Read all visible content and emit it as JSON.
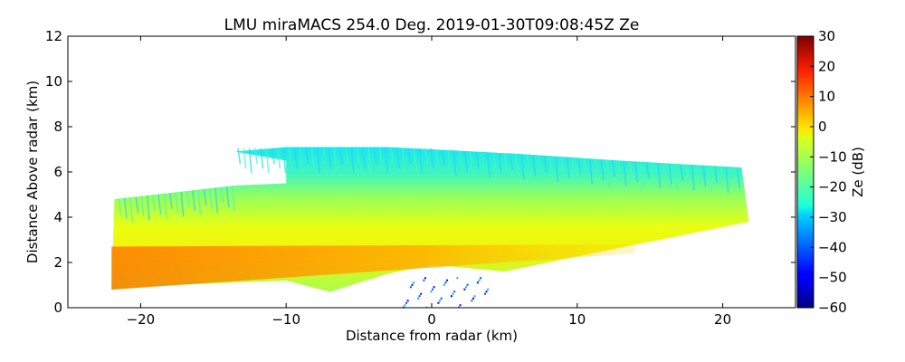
{
  "chart_data": {
    "type": "heatmap",
    "title": "LMU miraMACS 254.0 Deg. 2019-01-30T09:08:45Z  Ze",
    "xlabel": "Distance from radar (km)",
    "ylabel": "Distance Above radar  (km)",
    "xlim": [
      -25,
      25
    ],
    "ylim": [
      0,
      12
    ],
    "xticks": [
      -20,
      -10,
      0,
      10,
      20
    ],
    "xtick_labels": [
      "−20",
      "−10",
      "0",
      "10",
      "20"
    ],
    "yticks": [
      0,
      2,
      4,
      6,
      8,
      10,
      12
    ],
    "ytick_labels": [
      "0",
      "2",
      "4",
      "6",
      "8",
      "10",
      "12"
    ],
    "colorbar": {
      "label": "Ze (dB)",
      "range": [
        -60,
        30
      ],
      "ticks": [
        30,
        20,
        10,
        0,
        -10,
        -20,
        -30,
        -40,
        -50,
        -60
      ],
      "tick_labels": [
        "30",
        "20",
        "10",
        "0",
        "−10",
        "−20",
        "−30",
        "−40",
        "−50",
        "−60"
      ],
      "colormap": "jet"
    },
    "features": {
      "echo_region_outline_km": [
        [
          -22,
          0.8
        ],
        [
          -21.8,
          4.8
        ],
        [
          -13.5,
          5.4
        ],
        [
          -13.5,
          6.9
        ],
        [
          -10,
          7.1
        ],
        [
          -3,
          7.1
        ],
        [
          0,
          7.0
        ],
        [
          6,
          6.8
        ],
        [
          13,
          6.5
        ],
        [
          21.3,
          6.2
        ],
        [
          21.8,
          3.8
        ],
        [
          8,
          2.0
        ],
        [
          5,
          1.6
        ],
        [
          0,
          1.9
        ],
        [
          -3,
          1.5
        ],
        [
          -7,
          0.7
        ],
        [
          -10,
          1.2
        ],
        [
          -14,
          1.1
        ],
        [
          -18,
          1.0
        ]
      ],
      "notch_outline_km": [
        [
          -13.5,
          6.9
        ],
        [
          -10,
          6.5
        ],
        [
          -10,
          5.5
        ],
        [
          -13.5,
          5.4
        ]
      ],
      "bright_band": {
        "from_km": [
          -22,
          1.8
        ],
        "to_km": [
          14,
          2.5
        ],
        "Ze_dB": 10
      },
      "core_Ze_dB": -5,
      "cloud_top_Ze_dB": -30,
      "near_ground_clutter_x_km": [
        -2,
        4
      ]
    }
  }
}
